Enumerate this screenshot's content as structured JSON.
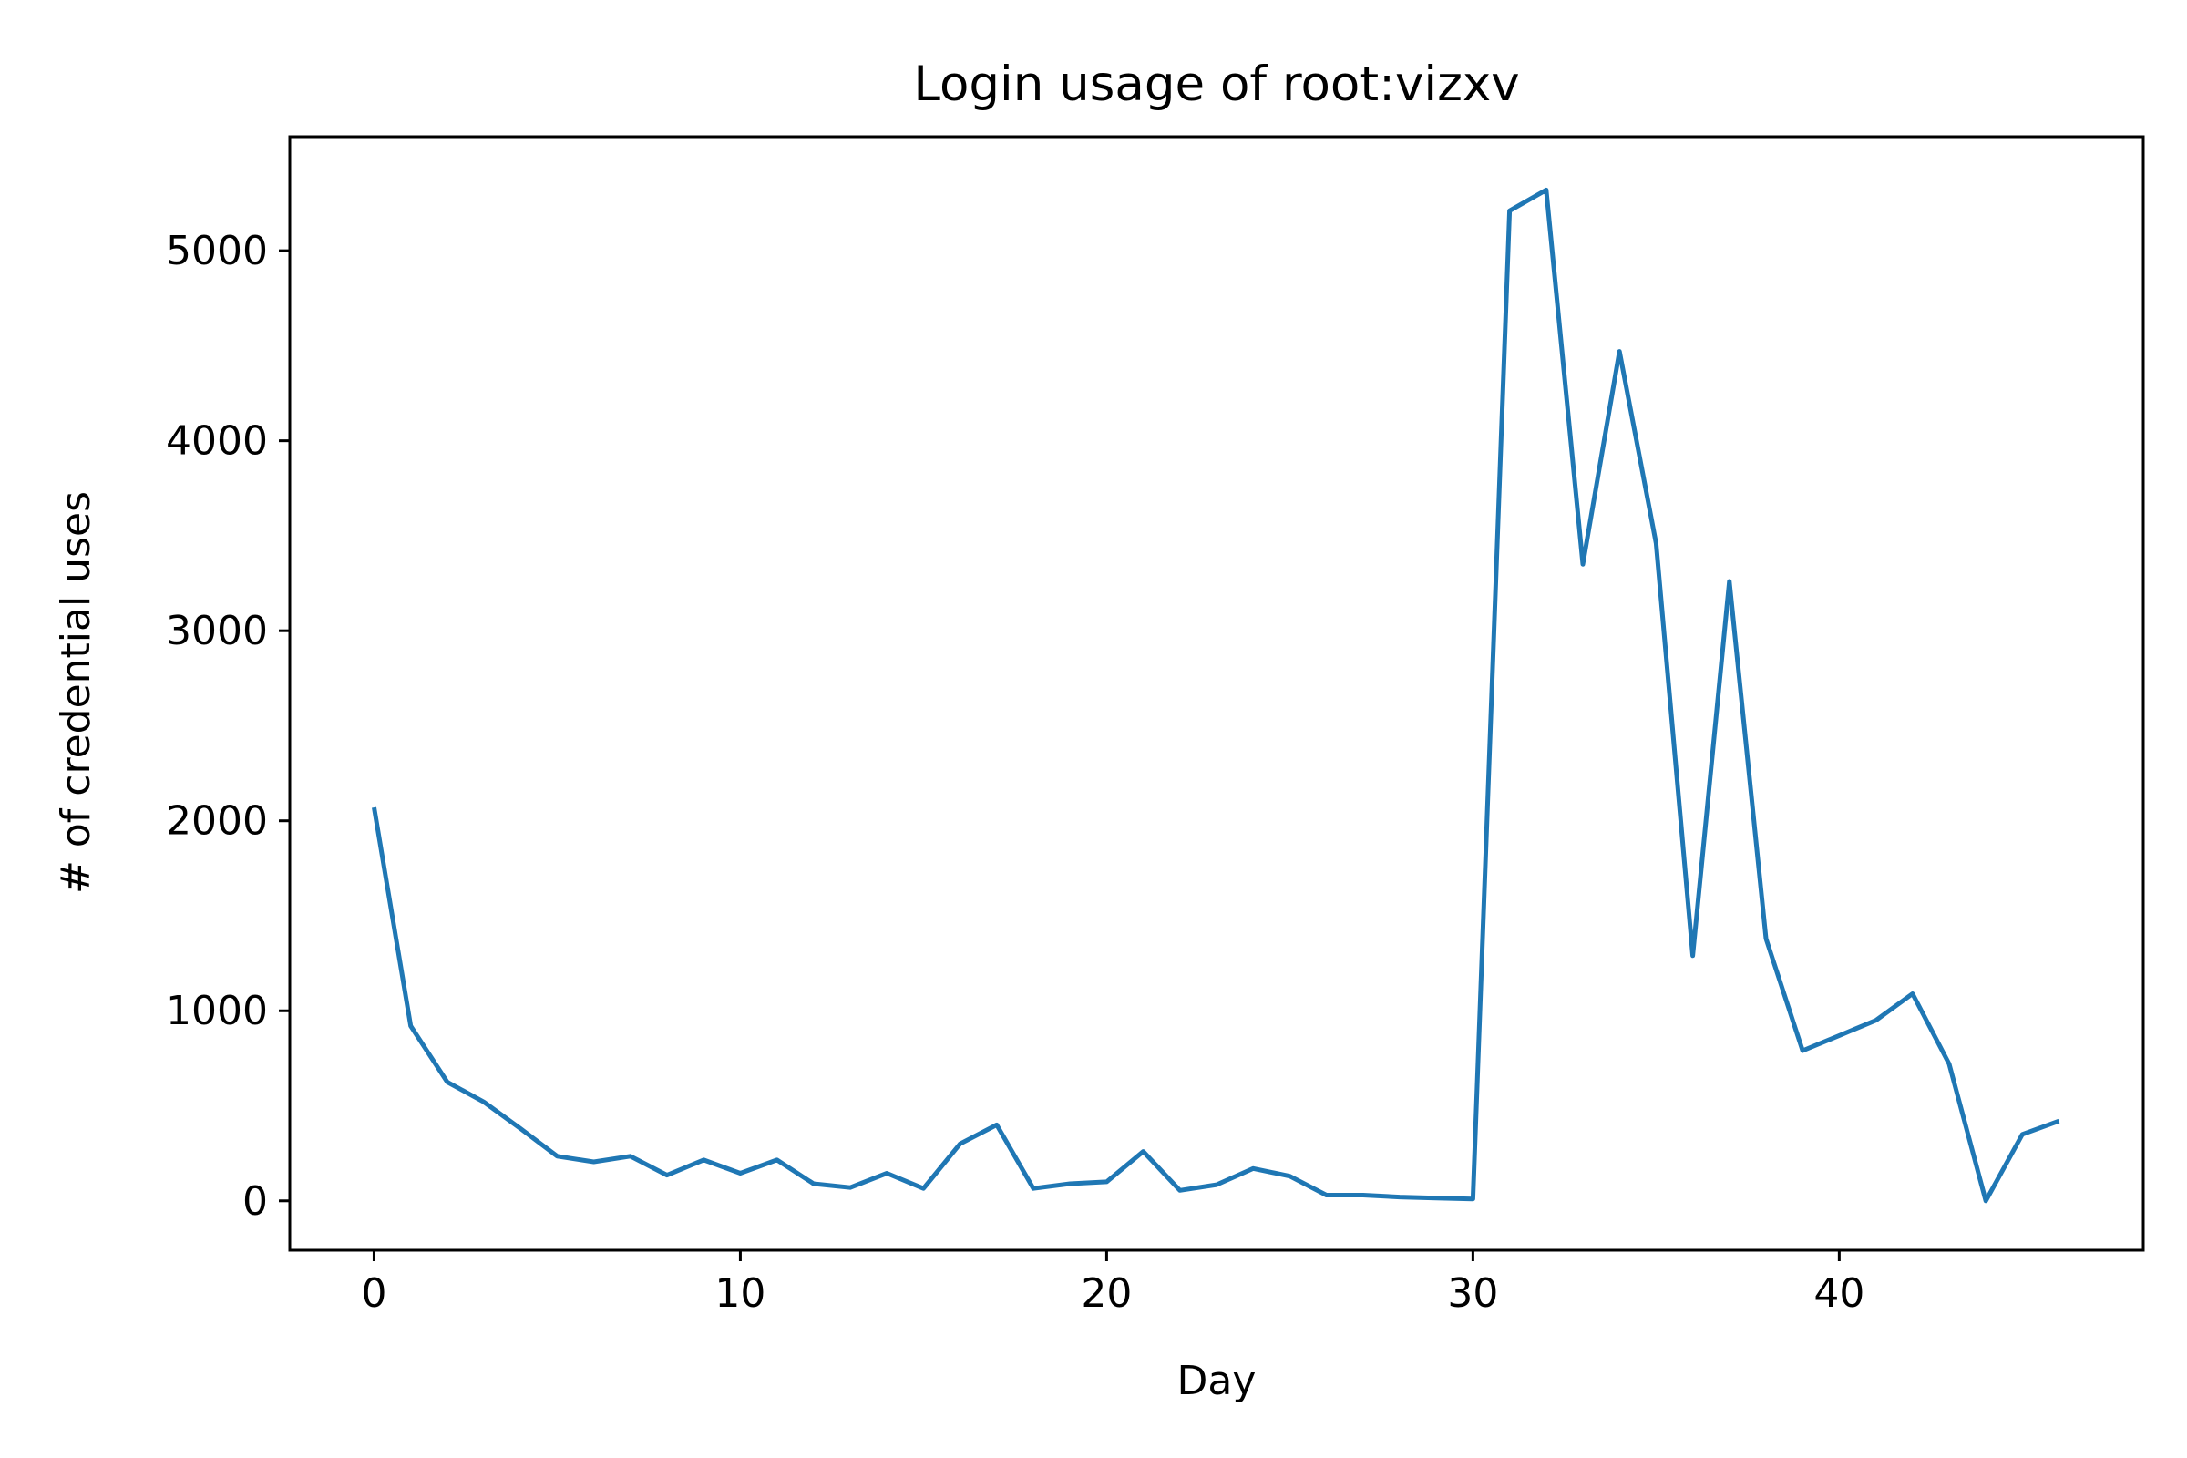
{
  "chart_data": {
    "type": "line",
    "title": "Login usage of root:vizxv",
    "xlabel": "Day",
    "ylabel": "# of credential uses",
    "xlim": [
      -2.3,
      48.3
    ],
    "ylim": [
      -260,
      5600
    ],
    "xticks": [
      0,
      10,
      20,
      30,
      40
    ],
    "yticks": [
      0,
      1000,
      2000,
      3000,
      4000,
      5000
    ],
    "xtick_labels": [
      "0",
      "10",
      "20",
      "30",
      "40"
    ],
    "ytick_labels": [
      "0",
      "1000",
      "2000",
      "3000",
      "4000",
      "5000"
    ],
    "grid": false,
    "colors": {
      "line": "#1f77b4",
      "axes": "#000000",
      "background": "#ffffff"
    },
    "x": [
      0,
      1,
      2,
      3,
      4,
      5,
      6,
      7,
      8,
      9,
      10,
      11,
      12,
      13,
      14,
      15,
      16,
      17,
      18,
      19,
      20,
      21,
      22,
      23,
      24,
      25,
      26,
      27,
      28,
      29,
      30,
      31,
      32,
      33,
      34,
      35,
      36,
      37,
      38,
      39,
      40,
      41,
      42,
      43,
      44,
      45,
      46
    ],
    "y": [
      2070,
      920,
      625,
      520,
      380,
      235,
      205,
      235,
      135,
      215,
      145,
      215,
      90,
      70,
      145,
      65,
      300,
      400,
      65,
      90,
      100,
      260,
      55,
      85,
      170,
      130,
      30,
      30,
      20,
      15,
      10,
      5210,
      5320,
      3350,
      4470,
      3460,
      1290,
      3260,
      1380,
      790,
      870,
      950,
      1090,
      720,
      0,
      350,
      420
    ]
  }
}
